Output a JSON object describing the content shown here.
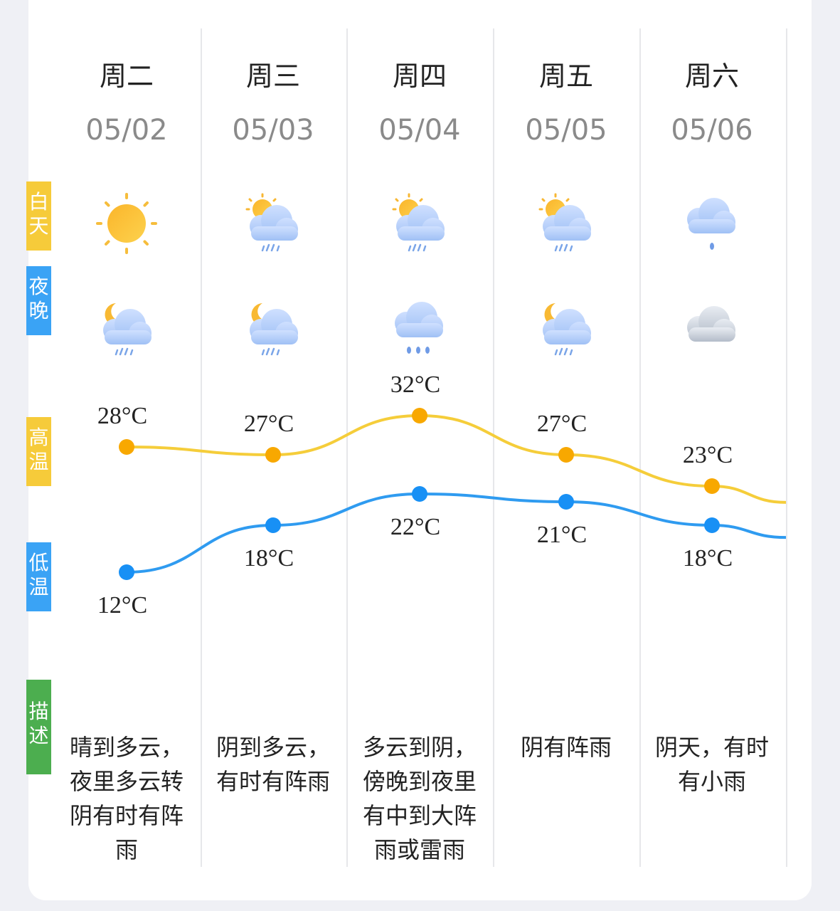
{
  "row_labels": {
    "day": "白天",
    "night": "夜晚",
    "high": "高温",
    "low": "低温",
    "desc": "描述"
  },
  "colors": {
    "high": "#f5cd3a",
    "high_dot": "#f8a800",
    "low": "#2f9bf0",
    "low_dot": "#1890f5",
    "tag_yellow": "#f6cb3a",
    "tag_blue": "#3aa3f5",
    "tag_green": "#4cae4f"
  },
  "days": [
    {
      "name": "周二",
      "date": "05/02",
      "day_icon": "sunny-icon",
      "night_icon": "moon-cloud-rain-icon",
      "high": "28°C",
      "low": "12°C",
      "high_v": 28,
      "low_v": 12,
      "desc": [
        "晴到多云，",
        "夜里多云转",
        "阴有时有阵",
        "雨"
      ]
    },
    {
      "name": "周三",
      "date": "05/03",
      "day_icon": "sun-cloud-rain-icon",
      "night_icon": "moon-cloud-rain-icon",
      "high": "27°C",
      "low": "18°C",
      "high_v": 27,
      "low_v": 18,
      "desc": [
        "阴到多云，",
        "有时有阵雨"
      ]
    },
    {
      "name": "周四",
      "date": "05/04",
      "day_icon": "sun-cloud-rain-icon",
      "night_icon": "cloud-heavy-rain-icon",
      "high": "32°C",
      "low": "22°C",
      "high_v": 32,
      "low_v": 22,
      "desc": [
        "多云到阴，",
        "傍晚到夜里",
        "有中到大阵",
        "雨或雷雨"
      ]
    },
    {
      "name": "周五",
      "date": "05/05",
      "day_icon": "sun-cloud-rain-icon",
      "night_icon": "moon-cloud-rain-icon",
      "high": "27°C",
      "low": "21°C",
      "high_v": 27,
      "low_v": 21,
      "desc": [
        "阴有阵雨"
      ]
    },
    {
      "name": "周六",
      "date": "05/06",
      "day_icon": "cloud-drop-icon",
      "night_icon": "overcast-icon",
      "high": "23°C",
      "low": "18°C",
      "high_v": 23,
      "low_v": 18,
      "desc": [
        "阴天，有时",
        "有小雨"
      ]
    }
  ]
}
